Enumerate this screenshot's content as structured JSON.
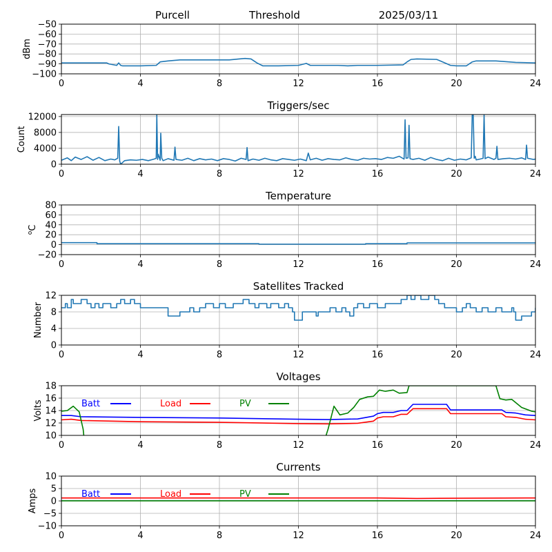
{
  "header": {
    "station": "Purcell",
    "label": "Threshold",
    "date": "2025/03/11"
  },
  "chart_data": [
    {
      "type": "line",
      "title": "",
      "xlabel": "",
      "ylabel": "dBm",
      "xlim": [
        0,
        24
      ],
      "ylim": [
        -100,
        -50
      ],
      "xticks": [
        0,
        4,
        8,
        12,
        16,
        20,
        24
      ],
      "yticks": [
        -100,
        -90,
        -80,
        -70,
        -60,
        -50
      ],
      "grid": true,
      "series": [
        {
          "color": "#1f77b4",
          "x": [
            0,
            2.3,
            2.4,
            2.8,
            2.9,
            3.0,
            3.1,
            4.0,
            4.8,
            5.0,
            5.4,
            6.0,
            7.5,
            8.5,
            9.0,
            9.3,
            9.6,
            9.9,
            10.2,
            11.0,
            12.0,
            12.4,
            12.6,
            12.9,
            14.0,
            14.5,
            15.0,
            16.0,
            17.3,
            17.5,
            17.7,
            18.0,
            19.0,
            19.3,
            19.7,
            20.0,
            20.5,
            20.8,
            21.0,
            21.5,
            22.0,
            23.0,
            24.0
          ],
          "y": [
            -89,
            -89,
            -90,
            -91.5,
            -89,
            -91.5,
            -92,
            -92,
            -91.5,
            -88,
            -87,
            -86,
            -86,
            -86,
            -85,
            -84.5,
            -85,
            -89,
            -92,
            -92,
            -91.5,
            -89.5,
            -91.5,
            -91.5,
            -91.5,
            -92,
            -91.5,
            -91.5,
            -91,
            -88,
            -85.5,
            -85,
            -85.5,
            -88,
            -91.5,
            -92,
            -92,
            -88,
            -87,
            -87,
            -87,
            -88.5,
            -89
          ]
        }
      ]
    },
    {
      "type": "line",
      "title": "Triggers/sec",
      "xlabel": "",
      "ylabel": "Count",
      "xlim": [
        0,
        24
      ],
      "ylim": [
        0,
        12500
      ],
      "xticks": [
        0,
        4,
        8,
        12,
        16,
        20,
        24
      ],
      "yticks": [
        0,
        4000,
        8000,
        12000
      ],
      "grid": true,
      "series": [
        {
          "color": "#1f77b4",
          "x": [
            0,
            0.3,
            0.5,
            0.7,
            1.0,
            1.3,
            1.6,
            1.9,
            2.2,
            2.5,
            2.7,
            2.85,
            2.9,
            2.95,
            3.0,
            3.2,
            3.5,
            3.8,
            4.1,
            4.4,
            4.7,
            4.8,
            4.83,
            4.87,
            4.9,
            5.0,
            5.03,
            5.08,
            5.15,
            5.4,
            5.7,
            5.75,
            5.8,
            6.1,
            6.4,
            6.7,
            7.0,
            7.3,
            7.6,
            7.9,
            8.2,
            8.5,
            8.8,
            9.1,
            9.35,
            9.4,
            9.45,
            9.7,
            10.0,
            10.3,
            10.6,
            10.9,
            11.2,
            11.5,
            11.8,
            12.1,
            12.4,
            12.5,
            12.6,
            12.9,
            13.2,
            13.5,
            13.8,
            14.1,
            14.4,
            14.7,
            15.0,
            15.3,
            15.6,
            15.9,
            16.2,
            16.5,
            16.8,
            17.1,
            17.35,
            17.4,
            17.45,
            17.55,
            17.6,
            17.65,
            17.8,
            18.1,
            18.4,
            18.7,
            19.0,
            19.3,
            19.6,
            19.9,
            20.2,
            20.5,
            20.75,
            20.8,
            20.85,
            20.9,
            20.95,
            21.0,
            21.2,
            21.35,
            21.4,
            21.45,
            21.6,
            21.9,
            22.0,
            22.05,
            22.1,
            22.4,
            22.7,
            23.0,
            23.3,
            23.5,
            23.55,
            23.6,
            23.9,
            24.0
          ],
          "y": [
            1000,
            1600,
            900,
            1800,
            1200,
            1900,
            1000,
            1700,
            900,
            1300,
            1100,
            1500,
            9500,
            800,
            0,
            900,
            1100,
            1000,
            1200,
            900,
            1300,
            1500,
            12500,
            1200,
            2500,
            1000,
            7800,
            1500,
            900,
            1400,
            1000,
            4300,
            1200,
            1000,
            1500,
            900,
            1400,
            1100,
            1300,
            900,
            1400,
            1200,
            800,
            1500,
            1200,
            4200,
            900,
            1300,
            1000,
            1500,
            1100,
            900,
            1400,
            1200,
            1000,
            1300,
            900,
            2800,
            1100,
            1500,
            1000,
            1400,
            1200,
            1100,
            1600,
            1200,
            1000,
            1500,
            1300,
            1400,
            1200,
            1700,
            1500,
            2000,
            1300,
            11200,
            1500,
            1600,
            9800,
            1400,
            1200,
            1500,
            1000,
            1700,
            1200,
            900,
            1500,
            1000,
            1300,
            1100,
            1600,
            12500,
            12500,
            1500,
            2000,
            1100,
            1300,
            1500,
            12500,
            1400,
            1800,
            1200,
            1500,
            4500,
            1200,
            1400,
            1500,
            1300,
            1600,
            1200,
            4800,
            1500,
            1200,
            1300
          ]
        }
      ]
    },
    {
      "type": "line",
      "title": "Temperature",
      "xlabel": "",
      "ylabel": "°C",
      "ylabel_parts": {
        "sup": "o",
        "main": "C"
      },
      "xlim": [
        0,
        24
      ],
      "ylim": [
        -20,
        80
      ],
      "xticks": [
        0,
        4,
        8,
        12,
        16,
        20,
        24
      ],
      "yticks": [
        -20,
        0,
        20,
        40,
        60,
        80
      ],
      "grid": true,
      "series": [
        {
          "color": "#1f77b4",
          "x": [
            0,
            1.8,
            1.8,
            10.0,
            10.0,
            15.4,
            15.4,
            17.5,
            17.5,
            24.0
          ],
          "y": [
            4,
            4,
            2,
            2,
            1,
            1,
            2,
            2,
            3.5,
            3.5
          ]
        }
      ]
    },
    {
      "type": "line",
      "title": "Satellites Tracked",
      "xlabel": "",
      "ylabel": "Number",
      "xlim": [
        0,
        24
      ],
      "ylim": [
        0,
        12
      ],
      "xticks": [
        0,
        4,
        8,
        12,
        16,
        20,
        24
      ],
      "yticks": [
        0,
        4,
        8,
        12
      ],
      "grid": true,
      "series": [
        {
          "color": "#1f77b4",
          "step": true,
          "x": [
            0,
            0.2,
            0.3,
            0.5,
            0.6,
            1.0,
            1.3,
            1.5,
            1.7,
            1.9,
            2.1,
            2.5,
            2.8,
            3.0,
            3.2,
            3.5,
            3.7,
            4.0,
            5.4,
            5.6,
            6.0,
            6.3,
            6.5,
            6.7,
            7.0,
            7.3,
            7.7,
            8.0,
            8.3,
            8.7,
            9.0,
            9.2,
            9.5,
            9.8,
            10.0,
            10.4,
            10.6,
            11.0,
            11.3,
            11.5,
            11.7,
            11.8,
            12.2,
            12.6,
            12.9,
            13.0,
            13.3,
            13.6,
            13.9,
            14.2,
            14.4,
            14.6,
            14.8,
            15.0,
            15.3,
            15.6,
            16.0,
            16.4,
            16.8,
            17.2,
            17.5,
            17.7,
            17.9,
            18.2,
            18.6,
            18.9,
            19.1,
            19.4,
            19.7,
            20.0,
            20.3,
            20.5,
            20.7,
            21.0,
            21.3,
            21.6,
            22.0,
            22.3,
            22.6,
            22.8,
            22.9,
            23.0,
            23.3,
            23.6,
            23.8,
            24.0
          ],
          "y": [
            9,
            10,
            9,
            11,
            10,
            11,
            10,
            9,
            10,
            9,
            10,
            9,
            10,
            11,
            10,
            11,
            10,
            9,
            7,
            7,
            8,
            8,
            9,
            8,
            9,
            10,
            9,
            10,
            9,
            10,
            10,
            11,
            10,
            9,
            10,
            9,
            10,
            9,
            10,
            9,
            8,
            6,
            8,
            8,
            7,
            8,
            8,
            9,
            8,
            9,
            8,
            7,
            9,
            10,
            9,
            10,
            9,
            10,
            10,
            11,
            12,
            11,
            12,
            11,
            12,
            11,
            10,
            9,
            9,
            8,
            9,
            10,
            9,
            8,
            9,
            8,
            9,
            8,
            8,
            9,
            8,
            6,
            7,
            7,
            8,
            9
          ]
        }
      ]
    },
    {
      "type": "line",
      "title": "Voltages",
      "xlabel": "",
      "ylabel": "Volts",
      "xlim": [
        0,
        24
      ],
      "ylim": [
        10,
        18
      ],
      "xticks": [
        0,
        4,
        8,
        12,
        16,
        20,
        24
      ],
      "yticks": [
        10,
        12,
        14,
        16,
        18
      ],
      "grid": true,
      "legend": "top-left (inline row)",
      "series": [
        {
          "name": "Batt",
          "color": "#0000ff",
          "x": [
            0,
            0.5,
            1.0,
            4.0,
            8.0,
            12.0,
            13.5,
            15.0,
            15.8,
            16.0,
            16.3,
            16.8,
            17.2,
            17.5,
            17.8,
            19.5,
            19.7,
            22.3,
            22.5,
            23.0,
            23.5,
            24.0
          ],
          "y": [
            13.2,
            13.2,
            13.0,
            12.9,
            12.8,
            12.6,
            12.55,
            12.65,
            13.1,
            13.5,
            13.7,
            13.7,
            14.0,
            14.0,
            15.0,
            15.0,
            14.1,
            14.1,
            13.7,
            13.6,
            13.3,
            13.2
          ]
        },
        {
          "name": "Load",
          "color": "#ff0000",
          "x": [
            0,
            0.5,
            1.0,
            4.0,
            8.0,
            12.0,
            13.5,
            15.0,
            15.8,
            16.0,
            16.3,
            16.8,
            17.2,
            17.5,
            17.8,
            19.5,
            19.7,
            22.3,
            22.5,
            23.0,
            23.5,
            24.0
          ],
          "y": [
            12.5,
            12.6,
            12.4,
            12.2,
            12.1,
            11.9,
            11.85,
            11.95,
            12.3,
            12.8,
            13.0,
            13.0,
            13.4,
            13.4,
            14.3,
            14.3,
            13.5,
            13.5,
            13.0,
            12.9,
            12.6,
            12.5
          ]
        },
        {
          "name": "PV",
          "color": "#008000",
          "x": [
            0,
            0.3,
            0.6,
            0.9,
            1.1,
            1.2,
            13.2,
            13.5,
            13.8,
            14.1,
            14.5,
            14.8,
            15.1,
            15.5,
            15.8,
            16.1,
            16.4,
            16.8,
            17.1,
            17.5,
            17.6,
            22.0,
            22.2,
            22.5,
            22.8,
            23.3,
            23.8,
            24.0
          ],
          "y": [
            13.9,
            14.0,
            14.7,
            13.8,
            11.0,
            8.0,
            8.0,
            11.0,
            14.7,
            13.3,
            13.6,
            14.5,
            15.8,
            16.2,
            16.3,
            17.3,
            17.1,
            17.3,
            16.8,
            16.9,
            18.0,
            18.0,
            15.9,
            15.7,
            15.8,
            14.5,
            13.9,
            13.8
          ]
        }
      ]
    },
    {
      "type": "line",
      "title": "Currents",
      "xlabel": "",
      "ylabel": "Amps",
      "xlim": [
        0,
        24
      ],
      "ylim": [
        -10,
        10
      ],
      "xticks": [
        0,
        4,
        8,
        12,
        16,
        20,
        24
      ],
      "yticks": [
        -10,
        -5,
        0,
        5,
        10
      ],
      "grid": true,
      "legend": "top-left (inline row)",
      "series": [
        {
          "name": "Batt",
          "color": "#0000ff",
          "x": [
            0,
            24
          ],
          "y": [
            0.1,
            0.1
          ]
        },
        {
          "name": "Load",
          "color": "#ff0000",
          "x": [
            0,
            16,
            18,
            20,
            24
          ],
          "y": [
            1.2,
            1.2,
            1.0,
            1.1,
            1.2
          ]
        },
        {
          "name": "PV",
          "color": "#008000",
          "x": [
            0,
            24
          ],
          "y": [
            0.05,
            0.05
          ]
        }
      ]
    }
  ]
}
